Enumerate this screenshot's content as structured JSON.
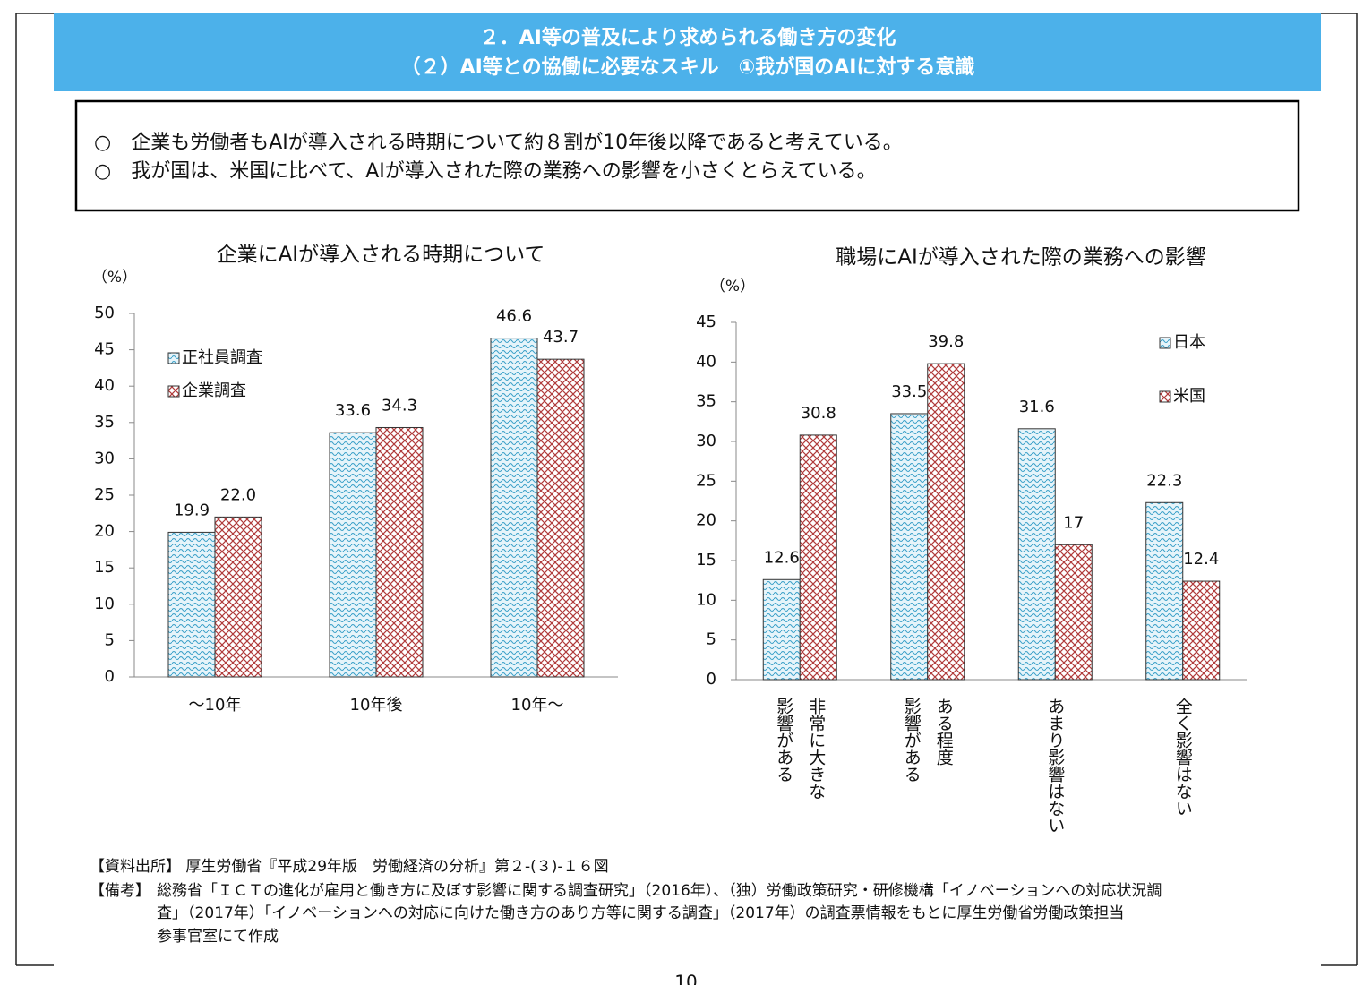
{
  "header": {
    "line1": "２．AI等の普及により求められる働き方の変化",
    "line2": "（２）AI等との協働に必要なスキル　①我が国のAIに対する意識"
  },
  "summary": [
    "○　企業も労働者もAIが導入される時期について約８割が10年後以降であると考えている。",
    "○　我が国は、米国に比べて、AIが導入された際の業務への影響を小さくとらえている。"
  ],
  "chart_data": [
    {
      "type": "bar",
      "title": "企業にAIが導入される時期について",
      "y_unit": "（%）",
      "categories": [
        "～10年",
        "10年後",
        "10年～"
      ],
      "series": [
        {
          "name": "正社員調査",
          "color": "#3aa0c8",
          "values": [
            19.9,
            33.6,
            46.6
          ],
          "value_labels": [
            "19.9",
            "33.6",
            "46.6"
          ]
        },
        {
          "name": "企業調査",
          "color": "#b03a3a",
          "values": [
            22.0,
            34.3,
            43.7
          ],
          "value_labels": [
            "22.0",
            "34.3",
            "43.7"
          ]
        }
      ],
      "ylim": [
        0,
        50
      ],
      "yticks": [
        0,
        5,
        10,
        15,
        20,
        25,
        30,
        35,
        40,
        45,
        50
      ],
      "legend": "upper left"
    },
    {
      "type": "bar",
      "title": "職場にAIが導入された際の業務への影響",
      "y_unit": "（%）",
      "categories": [
        "非常に大きな\n影響がある",
        "ある程度\n影響がある",
        "あまり影響はない",
        "全く影響はない"
      ],
      "series": [
        {
          "name": "日本",
          "color": "#3aa0c8",
          "values": [
            12.6,
            33.5,
            31.6,
            22.3
          ]
        },
        {
          "name": "米国",
          "color": "#b03a3a",
          "values": [
            30.8,
            39.8,
            17,
            12.4
          ]
        }
      ],
      "ylim": [
        0,
        45
      ],
      "yticks": [
        0,
        5,
        10,
        15,
        20,
        25,
        30,
        35,
        40,
        45
      ],
      "legend": "upper right"
    }
  ],
  "footer": {
    "source": "【資料出所】 厚生労働省『平成29年版　労働経済の分析』第２-(３)-１６図",
    "notes_label": "【備考】",
    "notes": [
      "総務省「ＩＣＴの進化が雇用と働き方に及ぼす影響に関する調査研究」（2016年）、（独）労働政策研究・研修機構「イノベーションへの対応状況調",
      "査」（2017年）「イノベーションへの対応に向けた働き方のあり方等に関する調査」（2017年）の調査票情報をもとに厚生労働省労働政策担当",
      "参事官室にて作成"
    ],
    "page": "10"
  }
}
